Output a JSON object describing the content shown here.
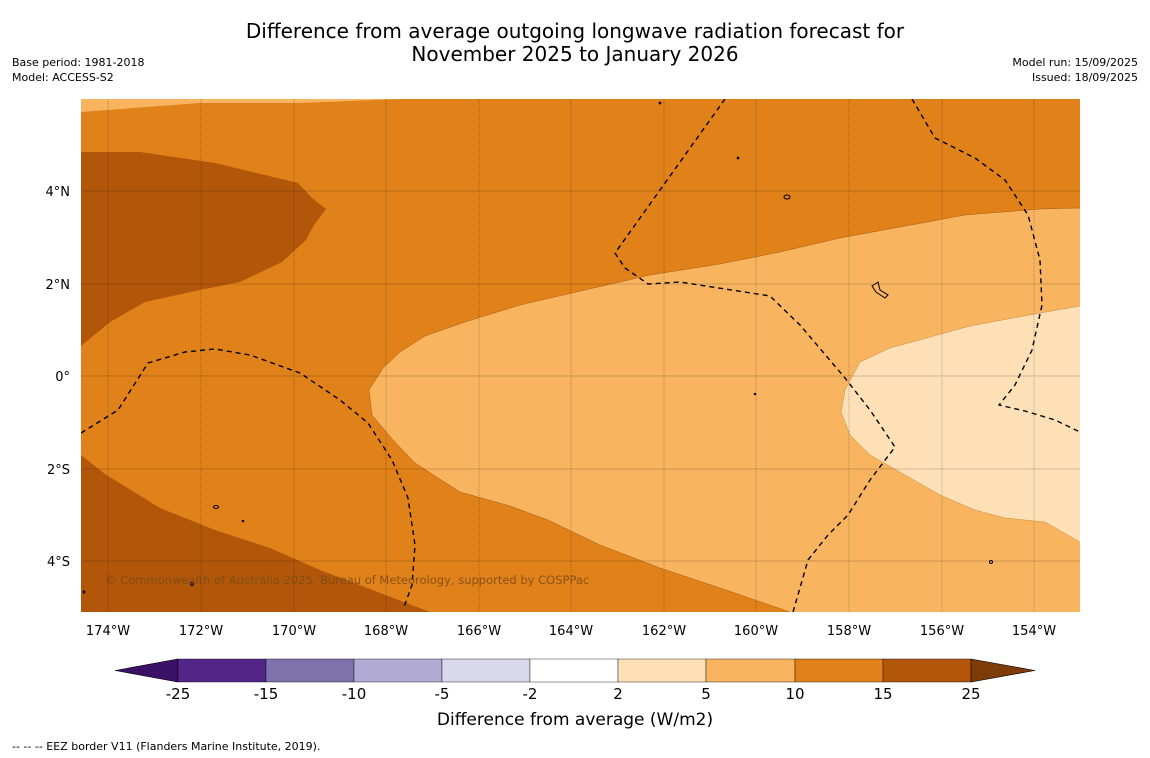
{
  "title_line1": "Difference from average outgoing longwave radiation forecast for",
  "title_line2": "November 2025 to January 2026",
  "meta_left": [
    "Base period: 1981-2018",
    "Model: ACCESS-S2"
  ],
  "meta_right": [
    "Model run: 15/09/2025",
    "Issued: 18/09/2025"
  ],
  "copyright": "© Commonwealth of Australia 2025, Bureau of Meteorology, supported by COSPPac",
  "lat_labels": [
    "4°N",
    "2°N",
    "0°",
    "2°S",
    "4°S"
  ],
  "lon_labels": [
    "174°W",
    "172°W",
    "170°W",
    "168°W",
    "166°W",
    "164°W",
    "162°W",
    "160°W",
    "158°W",
    "156°W",
    "154°W"
  ],
  "colorbar": {
    "title": "Difference from average (W/m2)",
    "ticks": [
      "-25",
      "-15",
      "-10",
      "-5",
      "-2",
      "2",
      "5",
      "10",
      "15",
      "25"
    ],
    "colors": [
      "#3b1166",
      "#532588",
      "#7f72ad",
      "#b1aad2",
      "#d9d8ea",
      "#ffffff",
      "#fde0b6",
      "#f9b460",
      "#e0811a",
      "#b2570a",
      "#7f3b08"
    ]
  },
  "footer": "--  --  -- EEZ border V11 (Flanders Marine Institute, 2019).",
  "colors": {
    "band_2_5": "#fde0b6",
    "band_5_10": "#f9b460",
    "band_10_15": "#e0811a",
    "band_15_25": "#b2570a"
  }
}
